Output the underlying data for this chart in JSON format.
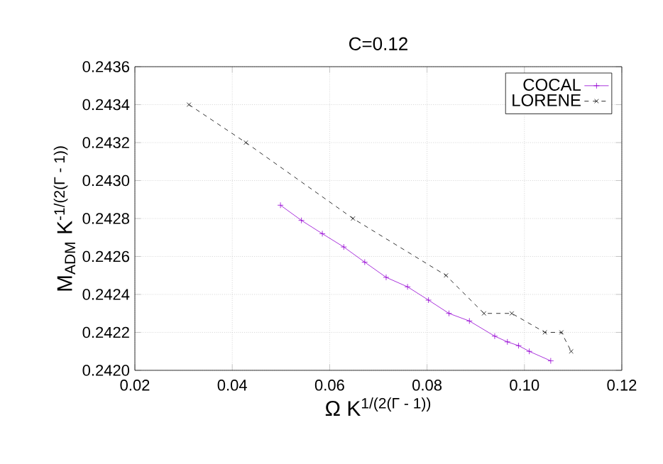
{
  "chart_data": {
    "type": "line",
    "title": "C=0.12",
    "xlabel": "Ω K$^{1/(2(Γ - 1))}$",
    "ylabel": "M$_{ADM}$ K$^{-1/(2(Γ - 1))}$",
    "xlim": [
      0.02,
      0.12
    ],
    "xticks": [
      {
        "value": 0.02,
        "label": "0.02"
      },
      {
        "value": 0.04,
        "label": "0.04"
      },
      {
        "value": 0.06,
        "label": "0.06"
      },
      {
        "value": 0.08,
        "label": "0.08"
      },
      {
        "value": 0.1,
        "label": "0.10"
      },
      {
        "value": 0.12,
        "label": "0.12"
      }
    ],
    "ylim": [
      0.242,
      0.2436
    ],
    "yticks": [
      {
        "value": 0.242,
        "label": "0.2420"
      },
      {
        "value": 0.2422,
        "label": "0.2422"
      },
      {
        "value": 0.2424,
        "label": "0.2424"
      },
      {
        "value": 0.2426,
        "label": "0.2426"
      },
      {
        "value": 0.2428,
        "label": "0.2428"
      },
      {
        "value": 0.243,
        "label": "0.2430"
      },
      {
        "value": 0.2432,
        "label": "0.2432"
      },
      {
        "value": 0.2434,
        "label": "0.2434"
      },
      {
        "value": 0.2436,
        "label": "0.2436"
      }
    ],
    "grid": true,
    "legend": "top right",
    "series": [
      {
        "name": "COCAL",
        "color": "#9400d3",
        "marker": "plus",
        "line_style": "solid",
        "x": [
          0.0499,
          0.0542,
          0.0585,
          0.0629,
          0.0672,
          0.0716,
          0.076,
          0.0803,
          0.0845,
          0.0887,
          0.0939,
          0.0965,
          0.0988,
          0.101,
          0.1054
        ],
        "values": [
          0.24287,
          0.24279,
          0.24272,
          0.24265,
          0.24257,
          0.24249,
          0.24244,
          0.24237,
          0.2423,
          0.24226,
          0.24218,
          0.24215,
          0.24213,
          0.2421,
          0.24205
        ]
      },
      {
        "name": "LORENE",
        "color": "#000000",
        "marker": "cross",
        "line_style": "dashed",
        "x": [
          0.0311,
          0.0428,
          0.0648,
          0.0839,
          0.0917,
          0.0974,
          0.1042,
          0.1076,
          0.1096
        ],
        "values": [
          0.2434,
          0.2432,
          0.2428,
          0.2425,
          0.2423,
          0.2423,
          0.2422,
          0.2422,
          0.2421
        ]
      }
    ]
  }
}
